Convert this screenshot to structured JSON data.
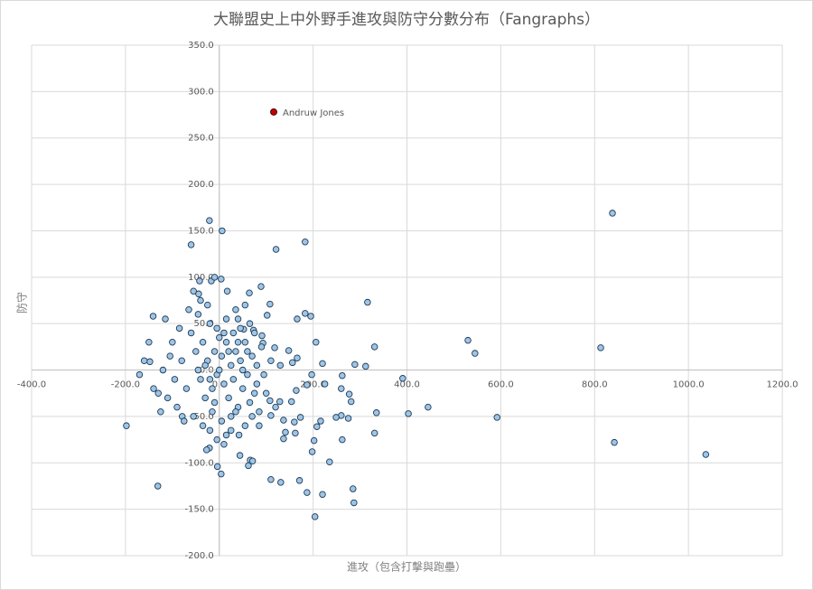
{
  "chart_data": {
    "type": "scatter",
    "title": "大聯盟史上中外野手進攻與防守分數分布（Fangraphs）",
    "xlabel": "進攻（包含打擊與跑壘）",
    "ylabel": "防守",
    "xlim": [
      -400,
      1200
    ],
    "ylim": [
      -200,
      350
    ],
    "xticks": [
      {
        "value": -400,
        "label": "-400.0"
      },
      {
        "value": -200,
        "label": "-200.0"
      },
      {
        "value": 0,
        "label": "0.0"
      },
      {
        "value": 200,
        "label": "200.0"
      },
      {
        "value": 400,
        "label": "400.0"
      },
      {
        "value": 600,
        "label": "600.0"
      },
      {
        "value": 800,
        "label": "800.0"
      },
      {
        "value": 1000,
        "label": "1000.0"
      },
      {
        "value": 1200,
        "label": "1200.0"
      }
    ],
    "yticks": [
      {
        "value": -200,
        "label": "-200.0"
      },
      {
        "value": -150,
        "label": "-150.0"
      },
      {
        "value": -100,
        "label": "-100.0"
      },
      {
        "value": -50,
        "label": "-50.0"
      },
      {
        "value": 0,
        "label": "0.0"
      },
      {
        "value": 50,
        "label": "50.0"
      },
      {
        "value": 100,
        "label": "100.0"
      },
      {
        "value": 150,
        "label": "150.0"
      },
      {
        "value": 200,
        "label": "200.0"
      },
      {
        "value": 250,
        "label": "250.0"
      },
      {
        "value": 300,
        "label": "300.0"
      },
      {
        "value": 350,
        "label": "350.0"
      }
    ],
    "grid": true,
    "series": [
      {
        "color": "#9ec5e5",
        "x": [
          838,
          813,
          530,
          545,
          592,
          842,
          1037,
          -198,
          445,
          403,
          391,
          316,
          331,
          289,
          312,
          335,
          331,
          285,
          287,
          204,
          220,
          187,
          171,
          131,
          110,
          -21,
          6,
          -60,
          121,
          183,
          4,
          -17,
          -42,
          89,
          17,
          64,
          -44,
          108,
          -141,
          183,
          195,
          166,
          -148,
          -79,
          -131,
          -21,
          -27,
          -4,
          4,
          44,
          66,
          62,
          71,
          42,
          206,
          220,
          262,
          260,
          277,
          281,
          260,
          249,
          275,
          262,
          216,
          208,
          198,
          235,
          202,
          162,
          141,
          137,
          173,
          160,
          137,
          110,
          108,
          129,
          154,
          164,
          197,
          187,
          225,
          156,
          166,
          148,
          118,
          91,
          93,
          73,
          52,
          102,
          40,
          -60,
          -50,
          -45,
          -40,
          -35,
          -30,
          -25,
          -20,
          -15,
          -10,
          -5,
          0,
          5,
          10,
          15,
          20,
          25,
          30,
          35,
          40,
          45,
          50,
          55,
          60,
          65,
          70,
          75,
          80,
          85,
          90,
          -70,
          -80,
          -90,
          -100,
          -110,
          -120,
          -55,
          -45,
          -35,
          -25,
          -15,
          -5,
          5,
          15,
          25,
          35,
          45,
          55,
          65,
          75,
          -65,
          -75,
          -85,
          -95,
          -105,
          -30,
          -20,
          -10,
          0,
          10,
          20,
          30,
          40,
          50,
          60,
          70,
          80,
          95,
          100,
          110,
          -130,
          -150,
          -160,
          -140,
          -170,
          -5,
          15,
          25,
          -20,
          -40,
          -10,
          10,
          35,
          55,
          -55,
          120,
          130,
          85,
          -115,
          -125
        ],
        "values": [
          169,
          24,
          32,
          18,
          -51,
          -78,
          -91,
          -60,
          -40,
          -47,
          -9,
          73,
          25,
          6,
          4,
          -46,
          -68,
          -128,
          -143,
          -158,
          -134,
          -132,
          -119,
          -121,
          -118,
          161,
          150,
          135,
          130,
          138,
          98,
          96,
          96,
          90,
          85,
          83,
          82,
          71,
          58,
          61,
          58,
          55,
          9,
          -50,
          -125,
          -84,
          -86,
          -104,
          -112,
          -92,
          -97,
          -103,
          -98,
          -70,
          30,
          7,
          -6,
          -20,
          -26,
          -34,
          -49,
          -51,
          -52,
          -75,
          -55,
          -61,
          -88,
          -99,
          -76,
          -68,
          -67,
          -74,
          -51,
          -56,
          -54,
          -49,
          -33,
          -34,
          -34,
          -22,
          -5,
          -16,
          -15,
          8,
          13,
          21,
          24,
          37,
          29,
          43,
          44,
          59,
          55,
          40,
          20,
          0,
          -10,
          30,
          -30,
          10,
          50,
          -20,
          20,
          -5,
          0,
          15,
          -15,
          30,
          -30,
          5,
          -10,
          20,
          -40,
          10,
          -20,
          30,
          -5,
          -35,
          15,
          -25,
          5,
          -45,
          25,
          -20,
          10,
          -40,
          30,
          -30,
          0,
          -50,
          60,
          -60,
          70,
          -45,
          45,
          -55,
          55,
          -50,
          -45,
          45,
          -60,
          50,
          40,
          65,
          -55,
          45,
          -10,
          15,
          5,
          -10,
          -35,
          35,
          40,
          20,
          40,
          30,
          0,
          20,
          -50,
          -15,
          -5,
          -25,
          10,
          -25,
          30,
          10,
          -20,
          -5,
          -75,
          -70,
          -65,
          -65,
          75,
          100,
          -80,
          65,
          70,
          85,
          -40,
          5,
          -60,
          55,
          -45
        ]
      }
    ],
    "annotations": [
      {
        "text": "Andruw Jones",
        "x": 116,
        "y": 278,
        "color": "#c00000"
      }
    ]
  }
}
